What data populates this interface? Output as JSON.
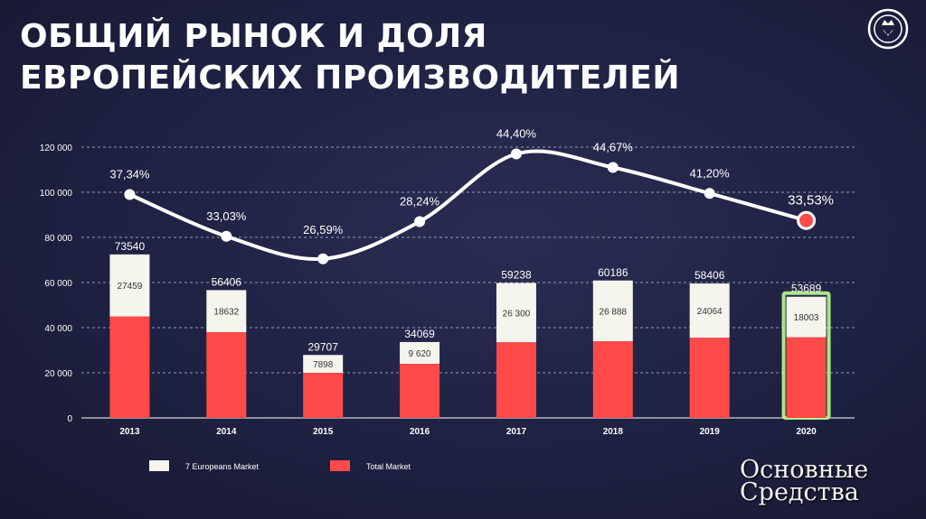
{
  "title": {
    "line1": "ОБЩИЙ РЫНОК И ДОЛЯ",
    "line2": "ЕВРОПЕЙСКИХ ПРОИЗВОДИТЕЛЕЙ"
  },
  "logo": {
    "icon": "griffin-crown-icon"
  },
  "watermark": {
    "line1": "Основные",
    "line2": "Средства"
  },
  "colors": {
    "total": "#ff4a4a",
    "europeans": "#f5f5ee",
    "highlight": "#b7ff8a",
    "curve": "#ffffff"
  },
  "chart_data": {
    "type": "bar",
    "categories": [
      "2013",
      "2014",
      "2015",
      "2016",
      "2017",
      "2018",
      "2019",
      "2020"
    ],
    "ylim": [
      0,
      120000
    ],
    "yticks": [
      0,
      20000,
      40000,
      60000,
      80000,
      100000,
      120000
    ],
    "ytick_labels": [
      "0",
      "20 000",
      "40 000",
      "60 000",
      "80 000",
      "100 000",
      "120 000"
    ],
    "series": [
      {
        "name": "Total Market",
        "values": [
          45000,
          38000,
          20000,
          24000,
          33500,
          34000,
          35500,
          35700
        ]
      },
      {
        "name": "7 Europeans Market",
        "values": [
          27459,
          18632,
          7898,
          9620,
          26300,
          26888,
          24064,
          18003
        ]
      }
    ],
    "total_labels": [
      "73540",
      "56406",
      "29707",
      "34069",
      "59238",
      "60186",
      "58406",
      "53689"
    ],
    "segment_labels": [
      "27459",
      "18632",
      "7898",
      "9 620",
      "26 300",
      "26 888",
      "24064",
      "18003"
    ],
    "share_labels": [
      "37,34%",
      "33,03%",
      "26,59%",
      "28,24%",
      "44,40%",
      "44,67%",
      "41,20%",
      "33,53%"
    ],
    "share_curve_values": [
      99000,
      80500,
      70500,
      87000,
      117000,
      111000,
      99500,
      87500
    ],
    "highlight_category": "2020",
    "grid": true,
    "legend": {
      "position": "bottom",
      "entries": [
        "7 Europeans Market",
        "Total Market"
      ]
    }
  }
}
